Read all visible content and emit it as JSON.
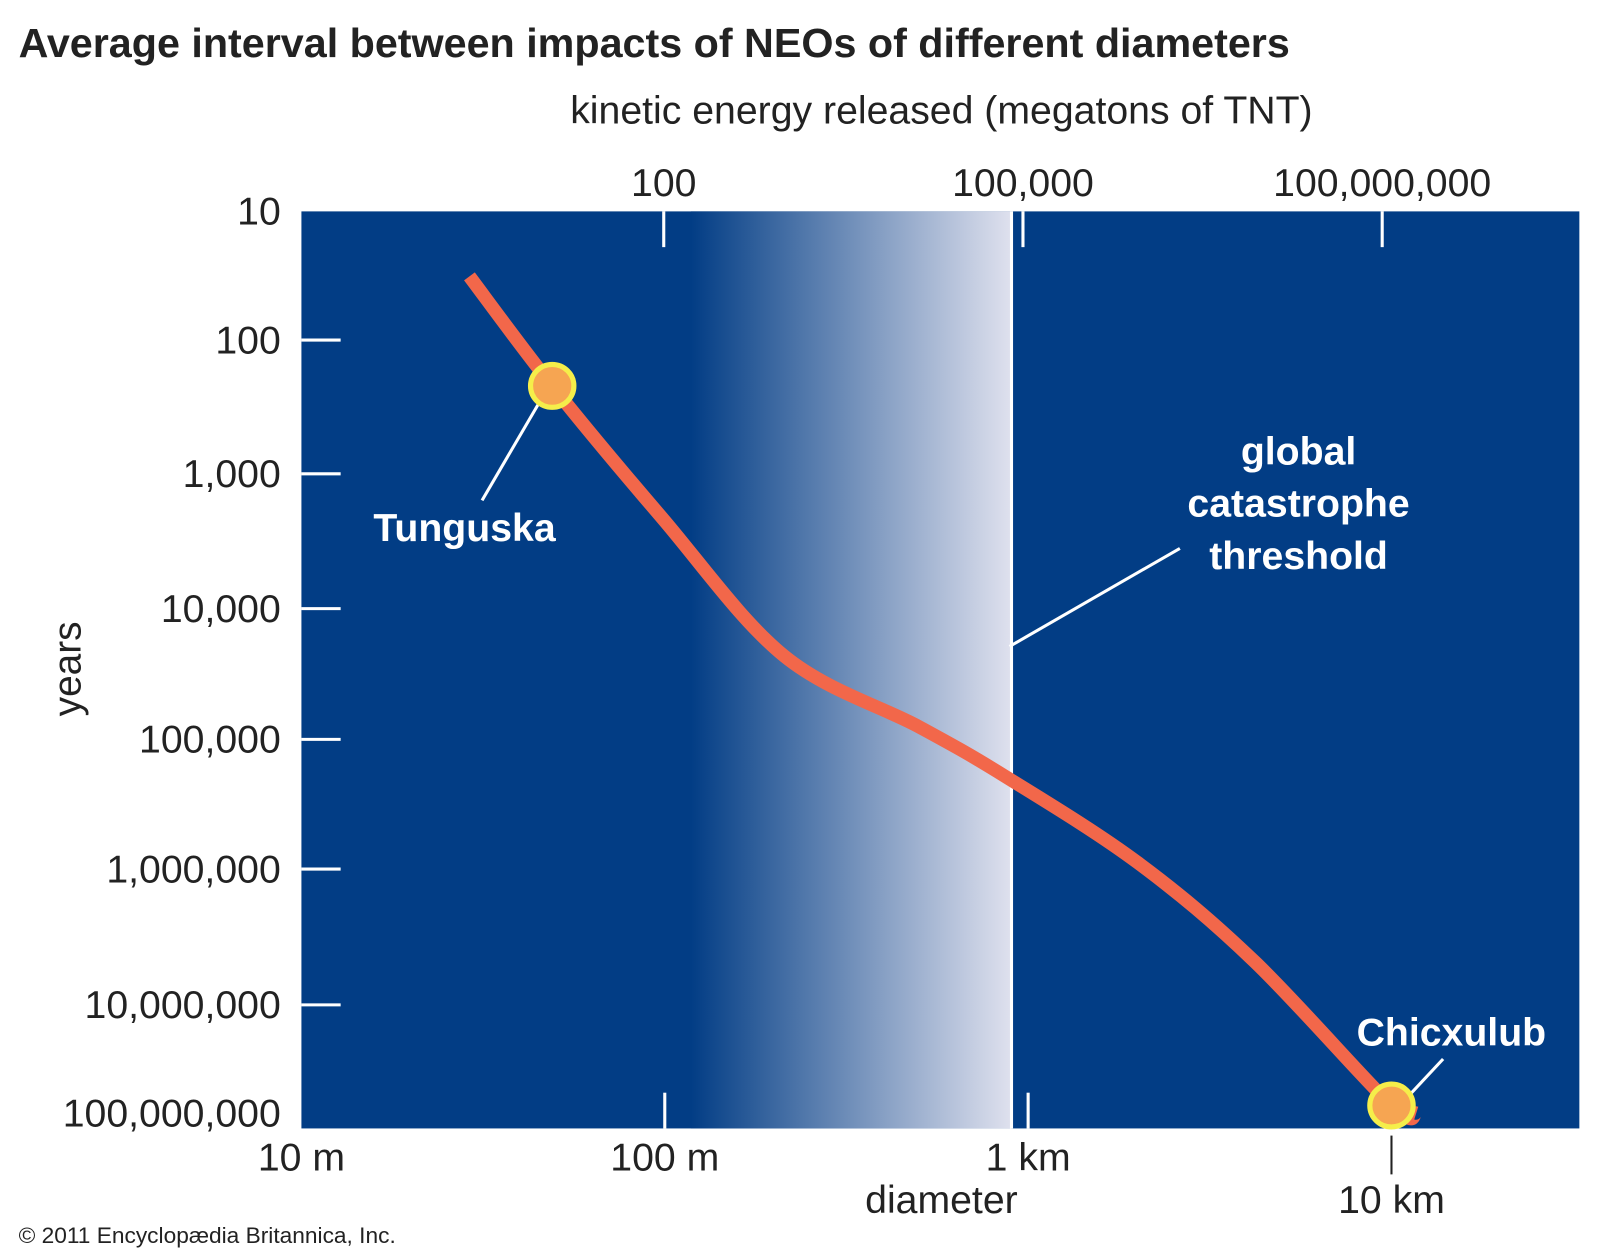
{
  "chart_data": {
    "type": "line",
    "title": "Average interval between impacts of NEOs of different diameters",
    "top_axis_label": "kinetic energy released (megatons of TNT)",
    "top_ticks": [
      {
        "label": "100",
        "value": 100
      },
      {
        "label": "100,000",
        "value": 100000
      },
      {
        "label": "100,000,000",
        "value": 100000000
      }
    ],
    "xlabel": "diameter",
    "x_scale": "log",
    "x_ticks": [
      {
        "label": "10 m",
        "value": 10
      },
      {
        "label": "100 m",
        "value": 100
      },
      {
        "label": "1 km",
        "value": 1000
      },
      {
        "label": "10 km",
        "value": 10000
      }
    ],
    "ylabel": "years",
    "y_scale": "log",
    "y_inverted": true,
    "y_ticks": [
      {
        "label": "10",
        "value": 10
      },
      {
        "label": "100",
        "value": 100
      },
      {
        "label": "1,000",
        "value": 1000
      },
      {
        "label": "10,000",
        "value": 10000
      },
      {
        "label": "100,000",
        "value": 100000
      },
      {
        "label": "1,000,000",
        "value": 1000000
      },
      {
        "label": "10,000,000",
        "value": 10000000
      },
      {
        "label": "100,000,000",
        "value": 100000000
      }
    ],
    "series": [
      {
        "name": "impact interval",
        "diameter_m": [
          29,
          49,
          98,
          213,
          500,
          870,
          2000,
          4200,
          10000,
          11700
        ],
        "years": [
          32,
          220,
          2100,
          23000,
          80000,
          195000,
          890000,
          4800000,
          85000000,
          100000000
        ]
      }
    ],
    "annotations": [
      {
        "label": "Tunguska",
        "diameter_m": 49,
        "years": 220
      },
      {
        "label": "Chicxulub",
        "diameter_m": 10000,
        "years": 85000000
      }
    ],
    "threshold": {
      "lines": [
        "global",
        "catastrophe",
        "threshold"
      ],
      "diameter_m": 900,
      "gradient_start_m": 118
    },
    "colors": {
      "background": "#023d85",
      "curve": "#f2674a",
      "marker_fill": "#f6a552",
      "marker_ring": "#f5ee4a",
      "gradient_end": "#dfe1ee"
    }
  },
  "copyright": "© 2011 Encyclopædia Britannica, Inc."
}
